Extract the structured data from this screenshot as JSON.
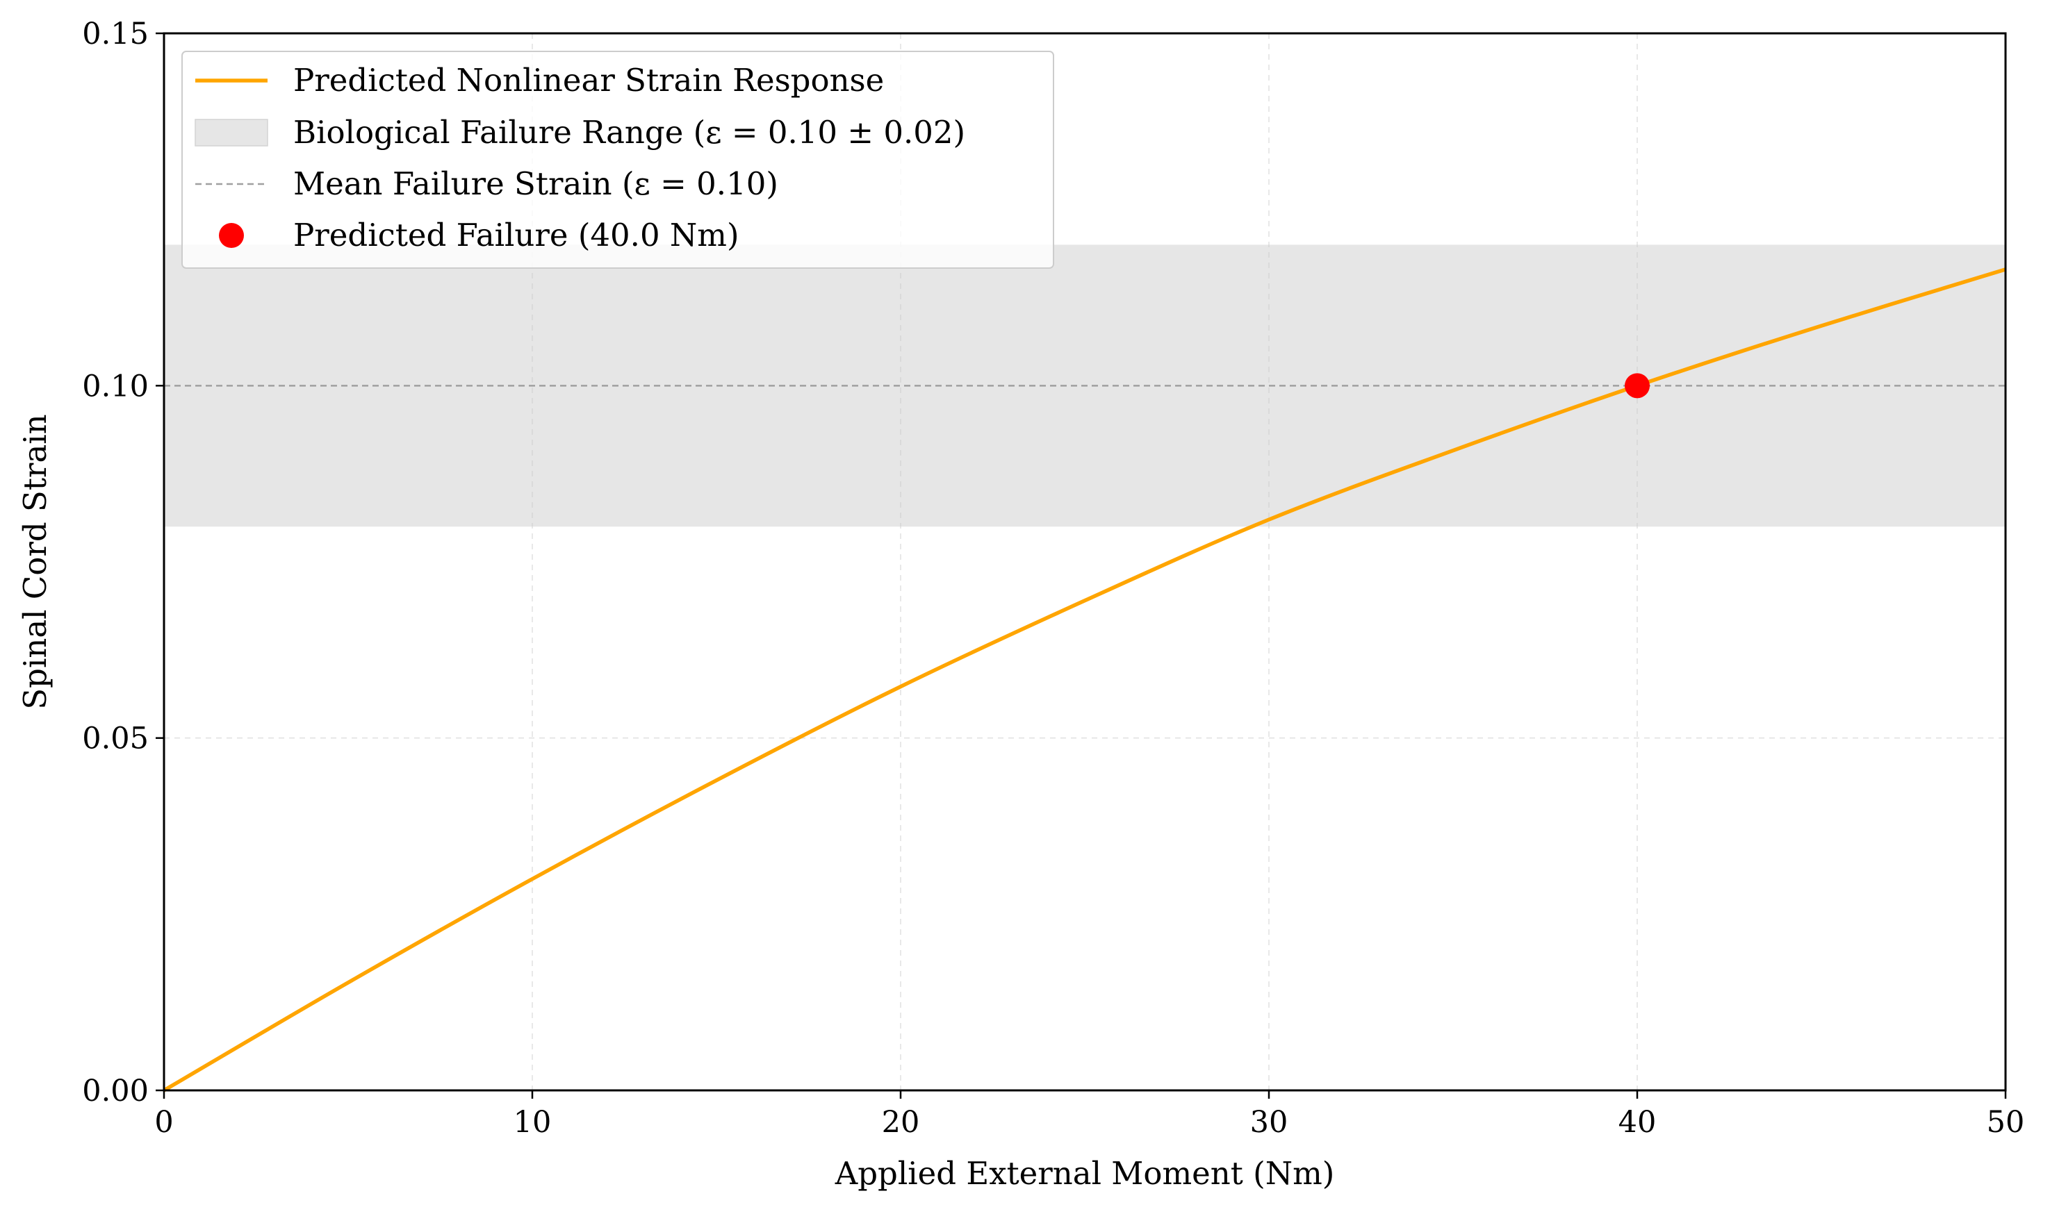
{
  "chart_data": {
    "type": "line",
    "xlabel": "Applied External Moment (Nm)",
    "ylabel": "Spinal Cord Strain",
    "xlim": [
      0,
      50
    ],
    "ylim": [
      0,
      0.15
    ],
    "xticks": [
      0,
      10,
      20,
      30,
      40,
      50
    ],
    "xtick_labels": [
      "0",
      "10",
      "20",
      "30",
      "40",
      "50"
    ],
    "yticks": [
      0,
      0.05,
      0.1,
      0.15
    ],
    "ytick_labels": [
      "0.00",
      "0.05",
      "0.10",
      "0.15"
    ],
    "grid": true,
    "legend_position": "upper-left",
    "series": [
      {
        "name": "Predicted Nonlinear Strain Response",
        "kind": "line",
        "color": "#FFA500",
        "x": [
          0,
          5,
          10,
          15,
          20,
          25,
          30,
          35,
          40,
          45,
          50
        ],
        "y": [
          0,
          0.0153,
          0.03,
          0.044,
          0.0573,
          0.0695,
          0.081,
          0.0908,
          0.1,
          0.1085,
          0.1165
        ]
      }
    ],
    "band": {
      "name": "Biological Failure Range (ε = 0.10 ± 0.02)",
      "y_low": 0.08,
      "y_high": 0.12,
      "color": "#E6E6E6"
    },
    "hline": {
      "name": "Mean Failure Strain (ε = 0.10)",
      "y": 0.1,
      "color": "#A0A0A0"
    },
    "point": {
      "name": "Predicted Failure (40.0 Nm)",
      "x": 40,
      "y": 0.1,
      "color": "#FF0000"
    }
  }
}
